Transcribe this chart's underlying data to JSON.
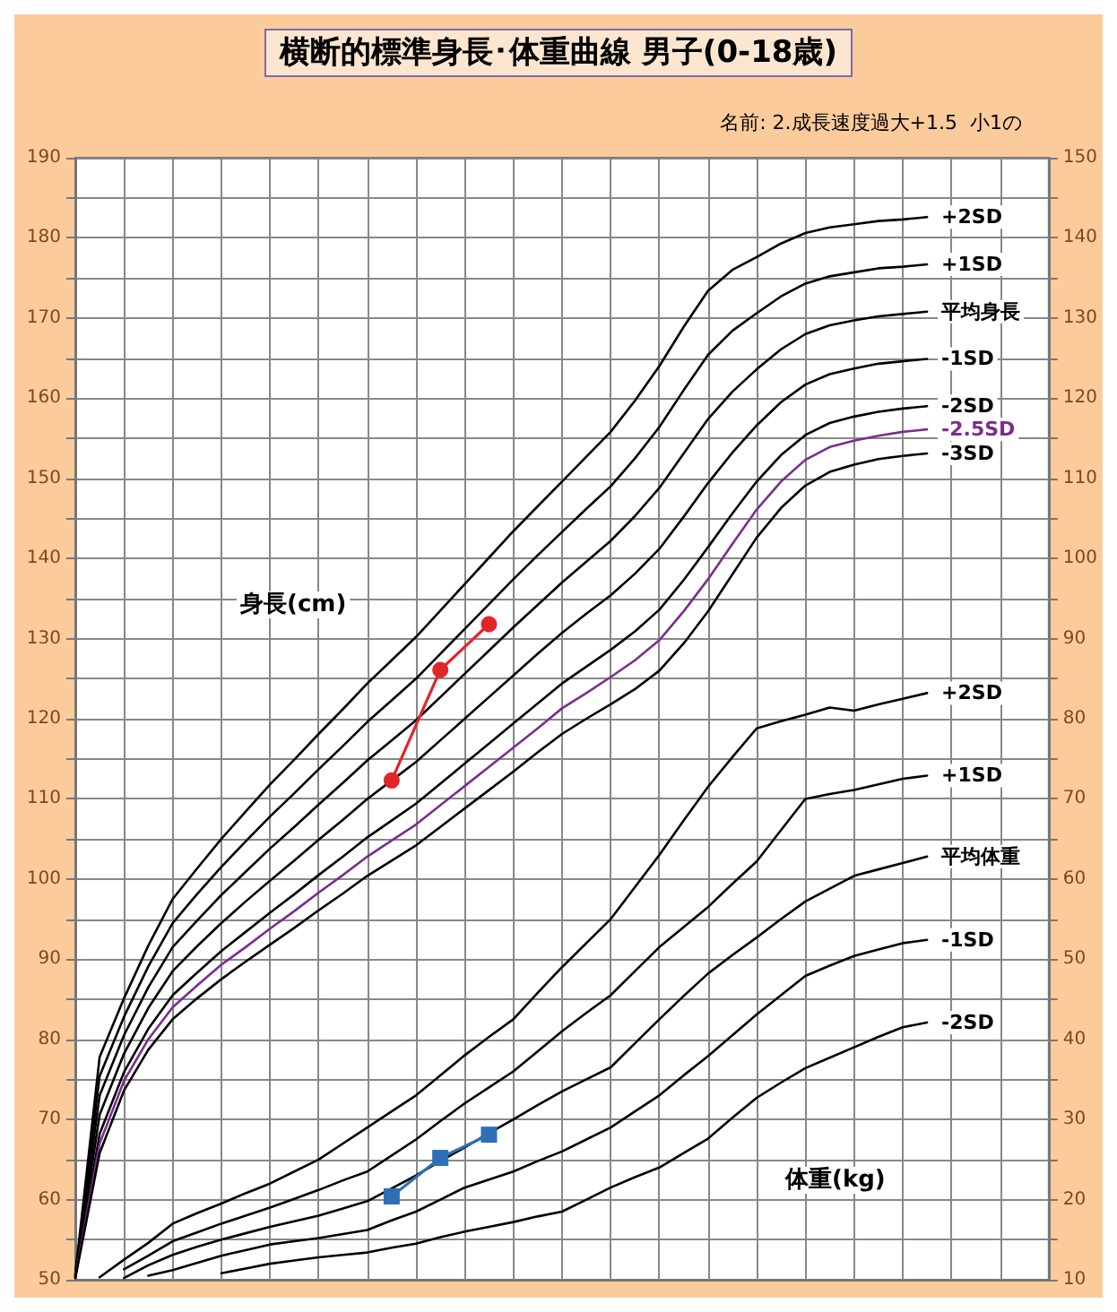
{
  "chart_data": {
    "type": "line",
    "title": "横断的標準身長･体重曲線 男子(0-18歳)",
    "subtitle": "名前: 2.成長速度過大+1.5  小1の",
    "ylabel": "身長(cm)",
    "y2label": "体重(kg)",
    "categories": [
      null,
      null,
      null,
      null,
      null,
      null,
      null,
      null,
      null,
      null,
      null,
      null,
      null,
      null,
      null,
      null,
      null,
      null,
      null,
      null,
      null,
      null,
      null,
      null,
      null,
      null,
      null,
      null,
      null,
      null,
      null,
      null,
      null,
      null,
      null,
      null,
      null,
      null,
      null,
      null,
      null
    ],
    "ylim": [
      50,
      190
    ],
    "yticks": [
      50,
      {
        "value": 55,
        "label": null
      },
      60,
      {
        "value": 65,
        "label": null
      },
      70,
      {
        "value": 75,
        "label": null
      },
      80,
      {
        "value": 85,
        "label": null
      },
      90,
      {
        "value": 95,
        "label": null
      },
      100,
      {
        "value": 105,
        "label": null
      },
      110,
      {
        "value": 115,
        "label": null
      },
      120,
      {
        "value": 125,
        "label": null
      },
      130,
      {
        "value": 135,
        "label": null
      },
      140,
      {
        "value": 145,
        "label": null
      },
      150,
      {
        "value": 155,
        "label": null
      },
      160,
      {
        "value": 165,
        "label": null
      },
      170,
      {
        "value": 175,
        "label": null
      },
      180,
      {
        "value": 185,
        "label": null
      },
      190
    ],
    "y2lim": [
      10,
      150
    ],
    "y2ticks": [
      10,
      {
        "value": 15,
        "label": null
      },
      20,
      {
        "value": 25,
        "label": null
      },
      30,
      {
        "value": 35,
        "label": null
      },
      40,
      {
        "value": 45,
        "label": null
      },
      50,
      {
        "value": 55,
        "label": null
      },
      60,
      {
        "value": 65,
        "label": null
      },
      70,
      {
        "value": 75,
        "label": null
      },
      80,
      {
        "value": 85,
        "label": null
      },
      90,
      {
        "value": 95,
        "label": null
      },
      100,
      {
        "value": 105,
        "label": null
      },
      110,
      {
        "value": 115,
        "label": null
      },
      120,
      {
        "value": 125,
        "label": null
      },
      130,
      {
        "value": 135,
        "label": null
      },
      140,
      {
        "value": 145,
        "label": null
      },
      150
    ],
    "grid": true,
    "marker": "none",
    "line_style": "solid",
    "series": [
      {
        "name": "+2SD",
        "color": "#000000",
        "values": [
          50.7,
          77.8,
          85.1,
          91.7,
          97.5,
          101.3,
          105,
          108.4,
          111.8,
          114.9,
          118.1,
          121.2,
          124.4,
          127.3,
          130.2,
          133.5,
          136.8,
          140.1,
          143.4,
          146.5,
          149.6,
          152.7,
          155.8,
          159.7,
          164,
          168.9,
          173.4,
          176,
          177.6,
          179.3,
          180.6,
          181.3,
          181.7,
          182.1,
          182.3,
          182.6,
          null,
          null,
          null,
          null,
          null
        ]
      },
      {
        "name": "+1SD",
        "color": "#000000",
        "values": [
          50.6,
          75.4,
          82.8,
          89.1,
          94.5,
          98.1,
          101.5,
          104.7,
          107.8,
          110.7,
          113.7,
          116.6,
          119.6,
          122.3,
          125,
          128.1,
          131.2,
          134.3,
          137.4,
          140.4,
          143.3,
          146.2,
          149,
          152.5,
          156.4,
          161,
          165.4,
          168.4,
          170.6,
          172.7,
          174.3,
          175.2,
          175.7,
          176.2,
          176.4,
          176.7,
          null,
          null,
          null,
          null,
          null
        ]
      },
      {
        "name": "平均身長",
        "color": "#000000",
        "values": [
          50.5,
          73,
          80.5,
          86.5,
          91.5,
          94.8,
          98,
          100.9,
          103.8,
          106.5,
          109.3,
          112,
          114.8,
          117.3,
          119.8,
          122.7,
          125.6,
          128.5,
          131.4,
          134.2,
          137,
          139.6,
          142.2,
          145.3,
          148.8,
          153.1,
          157.4,
          160.8,
          163.6,
          166.1,
          168,
          169.1,
          169.7,
          170.2,
          170.5,
          170.8,
          null,
          null,
          null,
          null,
          null
        ]
      },
      {
        "name": "-1SD",
        "color": "#000000",
        "values": [
          50.4,
          70.6,
          78.2,
          83.9,
          88.5,
          91.6,
          94.5,
          97.2,
          99.8,
          102.3,
          104.9,
          107.4,
          110,
          112.3,
          114.6,
          117.3,
          120,
          122.7,
          125.4,
          128.1,
          130.7,
          133.1,
          135.4,
          138.1,
          141.2,
          145.2,
          149.4,
          153.2,
          156.6,
          159.5,
          161.7,
          163,
          163.7,
          164.3,
          164.6,
          164.9,
          null,
          null,
          null,
          null,
          null
        ]
      },
      {
        "name": "-2SD",
        "color": "#000000",
        "values": [
          50.3,
          68.2,
          75.9,
          81.3,
          85.5,
          88.3,
          91,
          93.4,
          95.8,
          98.1,
          100.5,
          102.8,
          105.2,
          107.3,
          109.4,
          111.9,
          114.4,
          116.9,
          119.4,
          121.9,
          124.4,
          126.5,
          128.6,
          130.9,
          133.6,
          137.3,
          141.4,
          145.6,
          149.6,
          152.9,
          155.4,
          156.9,
          157.7,
          158.3,
          158.7,
          159,
          null,
          null,
          null,
          null,
          null
        ]
      },
      {
        "name": "-2.5SD",
        "color": "#7b2d8e",
        "values": [
          50.3,
          67,
          74.8,
          80,
          84,
          86.7,
          89.3,
          91.5,
          93.8,
          96,
          98.3,
          100.5,
          102.8,
          104.8,
          106.8,
          109.2,
          111.6,
          114,
          116.4,
          118.8,
          121.3,
          123.2,
          125.2,
          127.3,
          129.8,
          133.4,
          137.4,
          141.8,
          146.1,
          149.6,
          152.3,
          153.9,
          154.7,
          155.3,
          155.8,
          156.1,
          null,
          null,
          null,
          null,
          null
        ]
      },
      {
        "name": "-3SD",
        "color": "#000000",
        "values": [
          50.2,
          65.8,
          73.6,
          78.7,
          82.5,
          85.1,
          87.5,
          89.7,
          91.8,
          93.9,
          96.1,
          98.2,
          100.4,
          102.3,
          104.2,
          106.5,
          108.8,
          111.1,
          113.4,
          115.8,
          118.1,
          120,
          121.8,
          123.7,
          126,
          129.4,
          133.4,
          138,
          142.6,
          146.3,
          149.1,
          150.8,
          151.7,
          152.4,
          152.8,
          153.1,
          null,
          null,
          null,
          null,
          null
        ]
      },
      {
        "name": "+2SD",
        "color": "#000000",
        "axis": "y2",
        "values": [
          null,
          10.3,
          12.5,
          14.6,
          17,
          18.3,
          19.5,
          20.8,
          22,
          23.5,
          25,
          27,
          29,
          31,
          33,
          35.5,
          38,
          40.3,
          42.5,
          45.8,
          49,
          52,
          55,
          59,
          63,
          67.3,
          71.5,
          75.2,
          78.8,
          79.7,
          80.5,
          81.4,
          81,
          81.8,
          82.5,
          83.2,
          null,
          null,
          null,
          null,
          null
        ]
      },
      {
        "name": "+1SD",
        "color": "#000000",
        "axis": "y2",
        "values": [
          null,
          null,
          11.3,
          13,
          14.8,
          15.9,
          17,
          18,
          19,
          20.1,
          21.2,
          22.4,
          23.5,
          25.5,
          27.5,
          29.8,
          32,
          34,
          36,
          38.5,
          41,
          43.3,
          45.5,
          48.5,
          51.5,
          54,
          56.5,
          59.4,
          62.2,
          66.1,
          70,
          70.6,
          71.1,
          71.8,
          72.5,
          72.9,
          null,
          null,
          null,
          null,
          null
        ]
      },
      {
        "name": "平均体重",
        "color": "#000000",
        "axis": "y2",
        "values": [
          null,
          null,
          10.2,
          11.8,
          13.1,
          14.1,
          15,
          15.8,
          16.6,
          17.3,
          18,
          18.9,
          19.8,
          21.4,
          23,
          24.8,
          26.5,
          28.3,
          30,
          31.8,
          33.5,
          35,
          36.5,
          39.5,
          42.5,
          45.4,
          48.2,
          50.5,
          52.7,
          55,
          57.2,
          58.8,
          60.4,
          61.2,
          62,
          62.8,
          null,
          null,
          null,
          null,
          null
        ]
      },
      {
        "name": "-1SD",
        "color": "#000000",
        "axis": "y2",
        "values": [
          null,
          null,
          null,
          10.5,
          11.2,
          12.1,
          13,
          13.7,
          14.4,
          14.8,
          15.2,
          15.7,
          16.2,
          17.4,
          18.5,
          20,
          21.5,
          22.5,
          23.5,
          24.8,
          26,
          27.5,
          29,
          31,
          33,
          35.5,
          37.9,
          40.5,
          43.1,
          45.5,
          47.9,
          49.2,
          50.4,
          51.2,
          52,
          52.4,
          null,
          null,
          null,
          null,
          null
        ]
      },
      {
        "name": "-2SD",
        "color": "#000000",
        "axis": "y2",
        "values": [
          null,
          null,
          null,
          null,
          null,
          null,
          10.8,
          11.4,
          12,
          12.4,
          12.8,
          13.1,
          13.4,
          14,
          14.5,
          15.3,
          16,
          16.6,
          17.2,
          17.9,
          18.5,
          20,
          21.5,
          22.8,
          24,
          25.8,
          27.6,
          30.2,
          32.7,
          34.6,
          36.4,
          37.7,
          39,
          40.3,
          41.5,
          42.1,
          null,
          null,
          null,
          null,
          null
        ]
      },
      {
        "color": "#e0262a",
        "marker": "circle",
        "values": [
          null,
          null,
          null,
          null,
          null,
          null,
          null,
          null,
          null,
          null,
          null,
          null,
          null,
          112.3,
          null,
          126.1,
          null,
          131.8,
          null,
          null,
          null,
          null,
          null,
          null,
          null,
          null,
          null,
          null,
          null,
          null,
          null,
          null,
          null,
          null,
          null,
          null,
          null,
          null,
          null,
          null,
          null
        ]
      },
      {
        "color": "#2e6fb5",
        "marker": "square",
        "axis": "y2",
        "values": [
          null,
          null,
          null,
          null,
          null,
          null,
          null,
          null,
          null,
          null,
          null,
          null,
          null,
          20.4,
          null,
          25.2,
          null,
          28.1,
          null,
          null,
          null,
          null,
          null,
          null,
          null,
          null,
          null,
          null,
          null,
          null,
          null,
          null,
          null,
          null,
          null,
          null,
          null,
          null,
          null,
          null,
          null
        ]
      }
    ]
  }
}
